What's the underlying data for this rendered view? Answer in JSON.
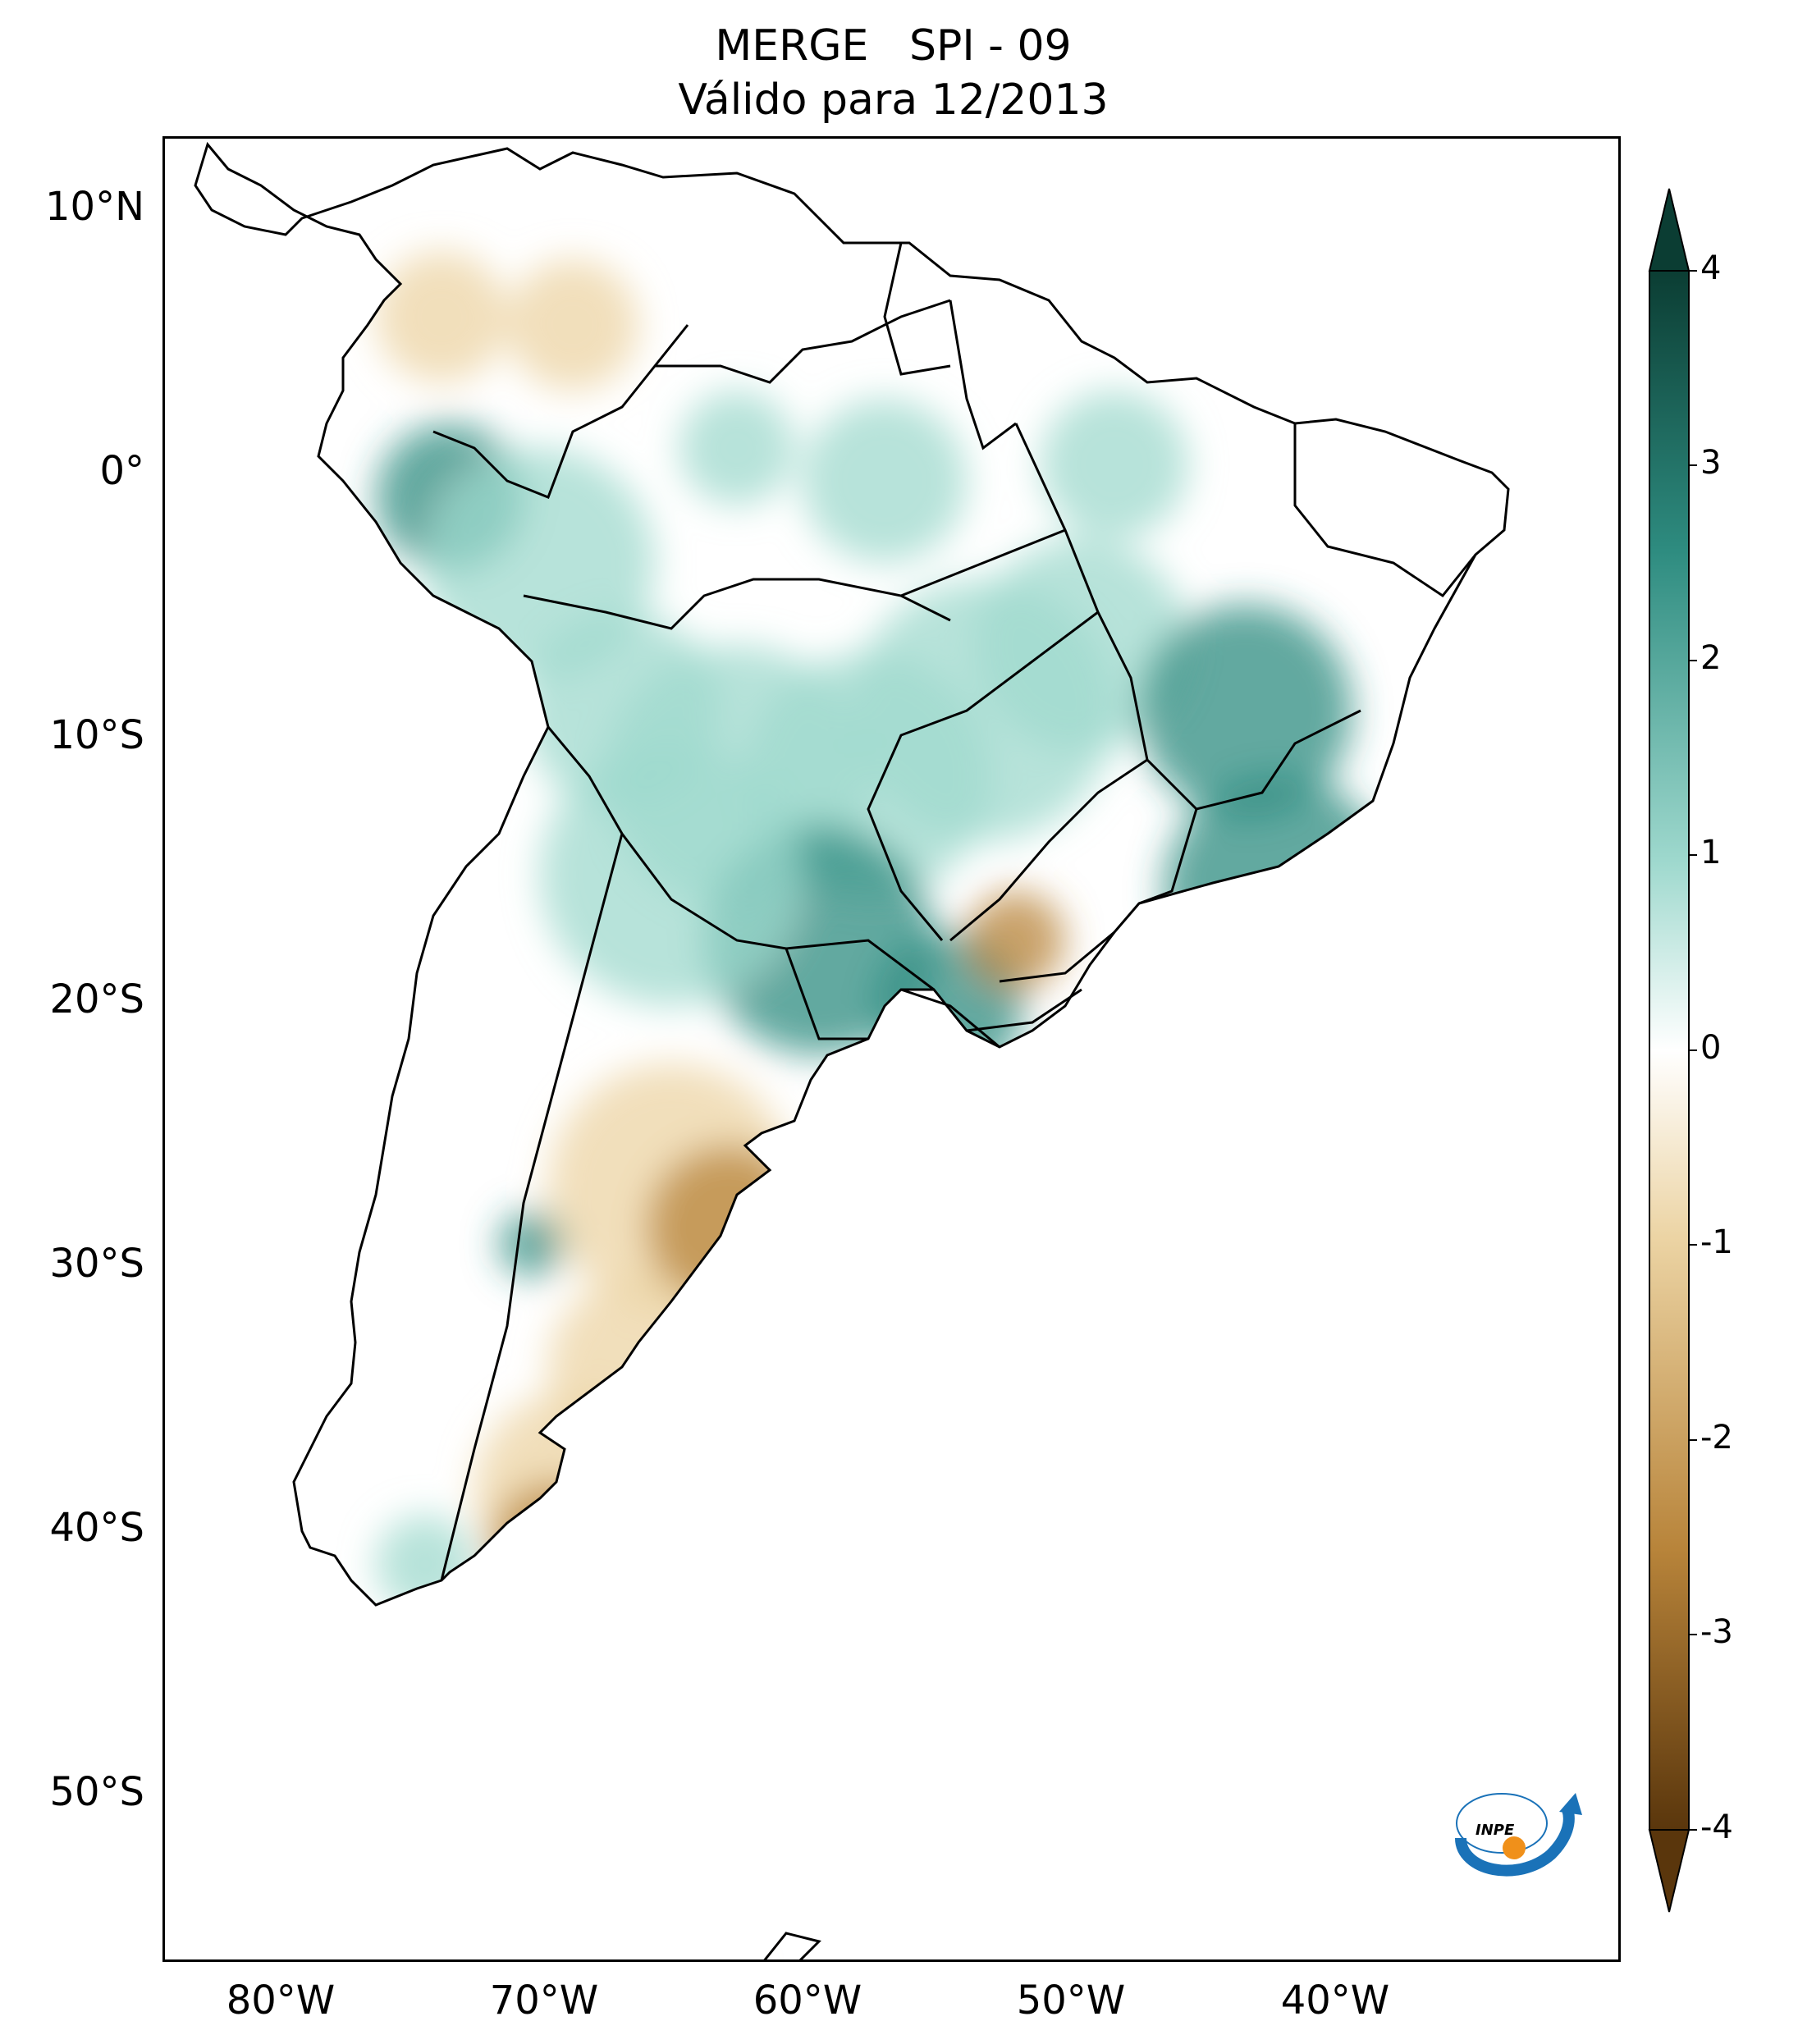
{
  "title": {
    "line1": "MERGE   SPI - 09",
    "line2": "Válido para 12/2013"
  },
  "axes": {
    "lat_labels": [
      "10°N",
      "0°",
      "10°S",
      "20°S",
      "30°S",
      "40°S",
      "50°S"
    ],
    "lon_labels": [
      "80°W",
      "70°W",
      "60°W",
      "50°W",
      "40°W"
    ]
  },
  "colorbar": {
    "ticks": [
      "4",
      "3",
      "2",
      "1",
      "0",
      "-1",
      "-2",
      "-3",
      "-4"
    ],
    "colors": {
      "max": "#0b3d33",
      "high": "#2e8c80",
      "mid_high": "#9fd9ce",
      "zero": "#ffffff",
      "mid_low": "#ecd4a4",
      "low": "#b8843a",
      "min": "#5a360c"
    }
  },
  "logo": {
    "text": "INPE",
    "colors": {
      "arc": "#1a72b8",
      "dot": "#f0901a"
    }
  }
}
